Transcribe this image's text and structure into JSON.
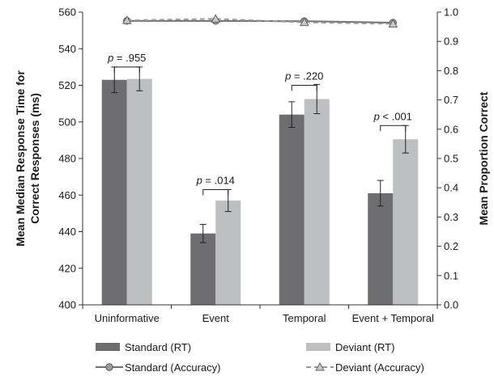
{
  "chart_data": {
    "type": "bar",
    "categories": [
      "Uninformative",
      "Event",
      "Temporal",
      "Event + Temporal"
    ],
    "ylabel": [
      "Mean Median Response Time for",
      "Correct Responses (ms)"
    ],
    "y2label": "Mean Proportion Correct",
    "ylim": [
      400,
      560
    ],
    "yticks": [
      400,
      420,
      440,
      460,
      480,
      500,
      520,
      540,
      560
    ],
    "y2lim": [
      0.0,
      1.0
    ],
    "y2ticks": [
      "0.0",
      "0.1",
      "0.2",
      "0.3",
      "0.4",
      "0.5",
      "0.6",
      "0.7",
      "0.8",
      "0.9",
      "1.0"
    ],
    "series": [
      {
        "name": "Standard (RT)",
        "kind": "bar",
        "axis": "left",
        "color": "#6e6e70",
        "values": [
          523,
          439,
          504,
          461
        ],
        "errors": [
          7,
          5,
          7,
          7
        ]
      },
      {
        "name": "Deviant (RT)",
        "kind": "bar",
        "axis": "left",
        "color": "#bebfc1",
        "values": [
          523.5,
          457,
          512.5,
          490.5
        ],
        "errors": [
          6.5,
          6,
          8,
          7.5
        ]
      },
      {
        "name": "Standard (Accuracy)",
        "kind": "line",
        "axis": "right",
        "color": "#707072",
        "marker": "circle",
        "dash": "solid",
        "values": [
          0.97,
          0.97,
          0.969,
          0.964
        ]
      },
      {
        "name": "Deviant (Accuracy)",
        "kind": "line",
        "axis": "right",
        "color": "#9a9a9c",
        "marker": "triangle",
        "dash": "dashed",
        "values": [
          0.972,
          0.977,
          0.965,
          0.96
        ]
      }
    ],
    "annotations": [
      {
        "category": "Uninformative",
        "prefix": "p",
        "text": " = .955",
        "bracket_y": 530
      },
      {
        "category": "Event",
        "prefix": "p",
        "text": " = .014",
        "bracket_y": 463
      },
      {
        "category": "Temporal",
        "prefix": "p",
        "text": " = .220",
        "bracket_y": 520
      },
      {
        "category": "Event + Temporal",
        "prefix": "p",
        "text": " < .001",
        "bracket_y": 498
      }
    ],
    "legend_position": "bottom"
  }
}
